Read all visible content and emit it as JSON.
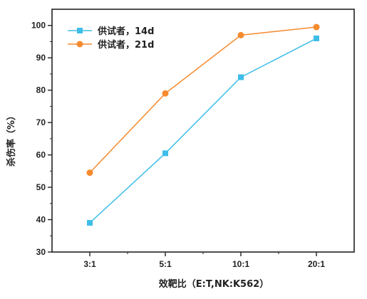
{
  "chart_data": {
    "type": "line",
    "categories": [
      "3:1",
      "5:1",
      "10:1",
      "20:1"
    ],
    "series": [
      {
        "name": "供试者，14d",
        "values": [
          39,
          60.5,
          84,
          96
        ],
        "color": "#3dbde8",
        "marker": "square"
      },
      {
        "name": "供试者，21d",
        "values": [
          54.5,
          79,
          97,
          99.5
        ],
        "color": "#f58a2e",
        "marker": "circle"
      }
    ],
    "xlabel": "效靶比（E:T,NK:K562）",
    "ylabel": "杀伤率（%）",
    "ylim": [
      30,
      105
    ],
    "yticks": [
      30,
      40,
      50,
      60,
      70,
      80,
      90,
      100
    ],
    "legend": "top-left",
    "grid": false
  }
}
